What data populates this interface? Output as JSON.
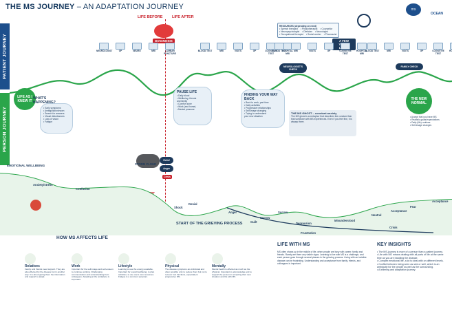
{
  "header": {
    "title_bold": "THE MS JOURNEY",
    "title_rest": " – AN ADAPTATION JOURNEY",
    "logo1": "ms",
    "logo2": "OCEAN"
  },
  "bands": {
    "patient": "PATIENT JOURNEY",
    "person": "PERSON JOURNEY"
  },
  "timeline": {
    "before": "LIFE BEFORE",
    "after": "LIFE AFTER",
    "diagnosis": "DIAGNOSIS",
    "years_later": "A FEW YEARS LATER"
  },
  "stage_groups": [
    [
      "NEUROLOGIST",
      "GP",
      "NEURO",
      "MRI",
      "LUMBAR PUNCTURE"
    ],
    [
      "BLOOD TEST",
      "MRI",
      "VISITS",
      "GP",
      "COGNITIVE TEST",
      "HOSPITAL MRI"
    ],
    [
      "BLOOD TEST",
      "MRI",
      "VISITS",
      "GP",
      "COGNITIVE TEST",
      "HOSPITAL MRI"
    ],
    [
      "BLOOD TEST",
      "MRI",
      "VISITS",
      "GP",
      "COGNITIVE TEST",
      "HOSPITAL MRI"
    ]
  ],
  "legend": {
    "title": "RESOURCES (depending on need)",
    "items": [
      "• Speech therapist",
      "• Neuropsychologist",
      "• Occupational therapist",
      "• Physiotherapist",
      "• Dietician",
      "• Social worker",
      "• Counsellor",
      "• Neurologist",
      "• Pharmacist"
    ]
  },
  "bubbles": {
    "life_as_known": "LIFE AS I KNEW IT",
    "whats_happening": "WHAT'S HAPPENING?",
    "whats_list": [
      "• Early symptoms",
      "• Ambiguity/unknown",
      "• Search for answers",
      "• Visual disturbances",
      "• Loss of vision",
      "• Fatigue"
    ],
    "pause_life": "PAUSE LIFE",
    "pause_list": [
      "• Daily blood",
      "• Wellbeing: friends",
      "  and family",
      "• Comfort zone",
      "• Work (and home)",
      "• Mental pressure"
    ],
    "finding_way": "FINDING YOUR WAY BACK",
    "finding_list": [
      "• Back to work, part time",
      "• Daily activities",
      "• Progressive relationships",
      "• Self-image changing",
      "• Trying to understand",
      "  your new situation"
    ],
    "family_check": "FAMILY CHECK",
    "neuro_check": "NEUROLOGIST'S CHECK",
    "new_normal": "THE NEW NORMAL",
    "new_normal_list": [
      "• Accept that you have MS",
      "• Realistic goals/expectations",
      "• Daily (life) routines",
      "• Self-image changes"
    ],
    "ms_ghost_title": "THE MS GHOST – constant anxiety",
    "ms_ghost_text": "The MS ghost is a metaphor that describes the constant fear that someone with MS experiences. Even if you feel fine, it is always there.",
    "storm_cloud": "STORM CLOUD",
    "msit_alert": "MSIT ALERT",
    "relief": "Relief",
    "anger": "Anger",
    "crisis": "Crisis"
  },
  "emotions": {
    "label": "EMOTIONAL WELLBEING",
    "points": [
      "Anxiety/stress",
      "Confusion",
      "Shock",
      "Denial",
      "Anger",
      "Guilt",
      "Sorrow",
      "Sorrow",
      "Frustration",
      "Misunderstood",
      "Neutral",
      "Acceptance",
      "Fear",
      "Acceptance",
      "Crisis",
      "Depression"
    ]
  },
  "grief": "START OF THE GRIEVING PROCESS",
  "how_ms_affects": {
    "title": "HOW MS AFFECTS LIFE",
    "columns": [
      {
        "h": "Relatives",
        "p": "Family and friends need support. They are also affected by the disease but in another way. It is about giving them the information and support to adapt."
      },
      {
        "h": "Work",
        "p": "Important for the self-image and self-esteem to continue working. Challenging communication and understanding from colleagues. Adapting at the workplace is important."
      },
      {
        "h": "Lifestyle",
        "p": "Learning to use the energy available. Important for overall wellbeing, to plan activities, to use one's own resources. Fatigue is a common symptom."
      },
      {
        "h": "Physical",
        "p": "The disease symptoms are individual and often possible only to reduce them but not to recover lost functions, especially in progressive MS."
      },
      {
        "h": "Mentally",
        "p": "Mental health is affected as much as the physical. Important to acknowledge and to support the person in accepting their new situation and life with MS."
      }
    ]
  },
  "life_with_ms": {
    "title": "LIFE WITH MS",
    "p": "MS often shows up in the middle of life, when people are busy with career, family and friends. Rarely are there any visible signs. Learning to live with MS is a challenge, and each person goes through several phases in the grieving process. Living with an invisible disease can be frustrating. Understanding and acceptance from family, friends, and colleagues is important."
  },
  "key_insights": {
    "title": "KEY INSIGHTS",
    "items": [
      "• The MS-journey is more of a person than a patient journey.",
      "• Life with MS means dealing with all parts of life at the same time as you are handling the disease.",
      "• Complex emotional life, a lot to deal with on different levels.",
      "• Conflict between being seen as sick or well, which is an ambiguity for the people as well as the surrounding.",
      "• A learning and adaptation journey."
    ]
  },
  "colors": {
    "navy": "#1d3a5c",
    "green": "#2aa54a",
    "red": "#c8202a",
    "blue": "#1d4f8c"
  }
}
